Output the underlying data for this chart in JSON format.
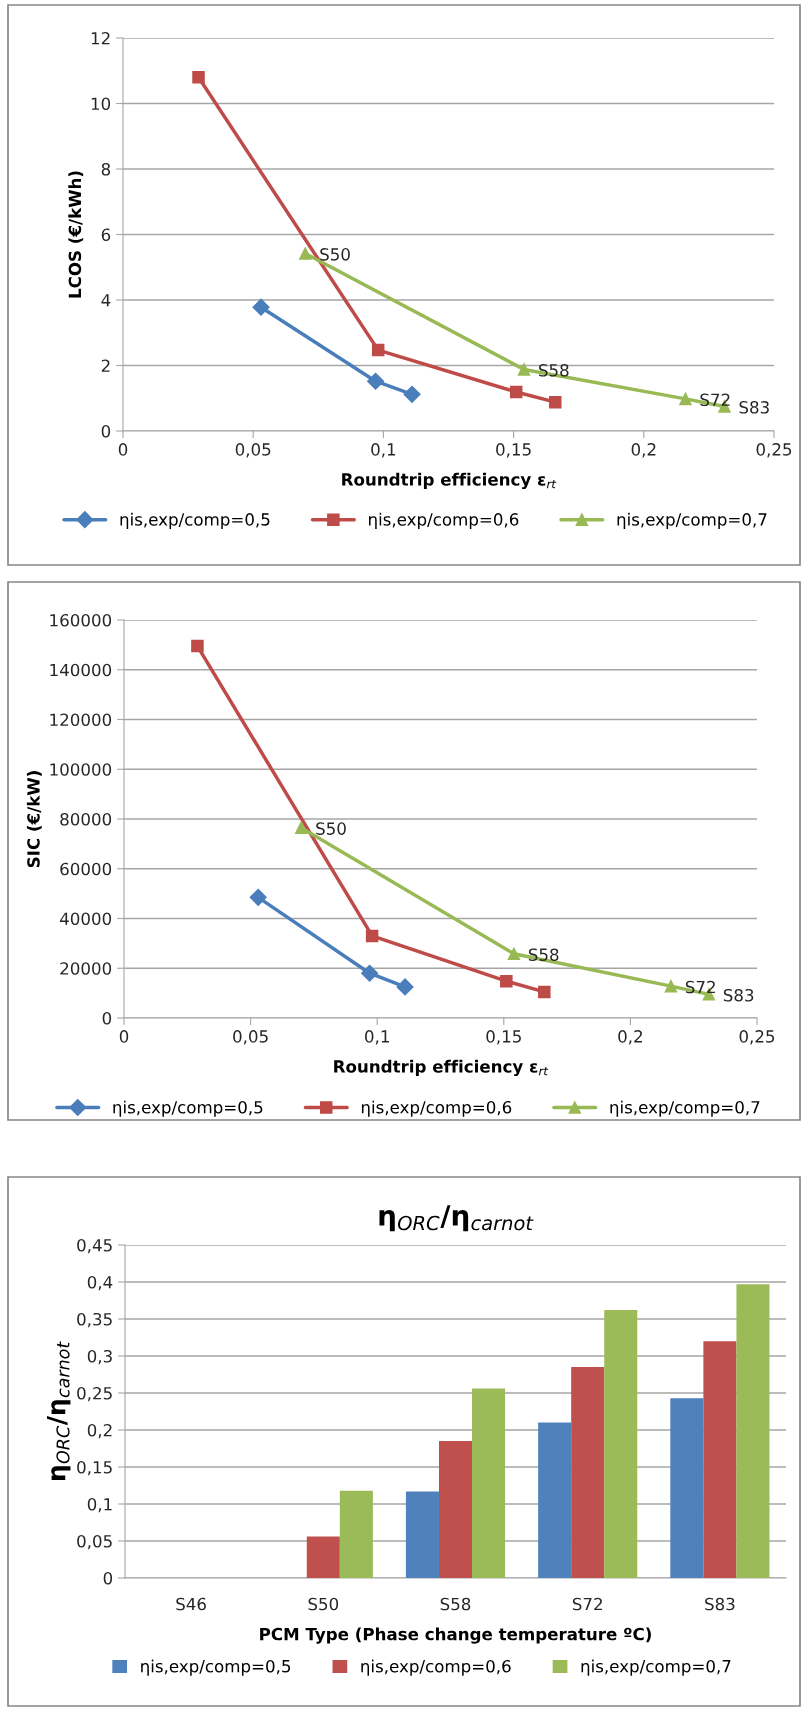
{
  "chart_data": [
    {
      "type": "line",
      "xlabel": "Roundtrip efficiency ε$_{rt}$",
      "ylabel": "LCOS (€/kWh)",
      "xlim": [
        0,
        0.25
      ],
      "xticks": [
        0,
        {
          "value": 0.05,
          "label": "0,05"
        },
        {
          "value": 0.1,
          "label": "0,1"
        },
        {
          "value": 0.15,
          "label": "0,15"
        },
        {
          "value": 0.2,
          "label": "0,2"
        },
        {
          "value": 0.25,
          "label": "0,25"
        }
      ],
      "ylim": [
        0,
        12
      ],
      "yticks": [
        0,
        2,
        4,
        6,
        8,
        10,
        12
      ],
      "grid": "y",
      "legend": "bottom",
      "series": [
        {
          "name": "ηis,exp/comp=0,5",
          "color": "#4a7ebb",
          "marker": "diamond",
          "x": [
            0.053,
            0.097,
            0.111
          ],
          "values": [
            3.78,
            1.52,
            1.12
          ]
        },
        {
          "name": "ηis,exp/comp=0,6",
          "color": "#be4b48",
          "marker": "square",
          "x": [
            0.029,
            0.098,
            0.151,
            0.166
          ],
          "values": [
            10.8,
            2.47,
            1.19,
            0.88
          ]
        },
        {
          "name": "ηis,exp/comp=0,7",
          "color": "#98b954",
          "marker": "triangle",
          "x": [
            0.07,
            0.154,
            0.216,
            0.231
          ],
          "values": [
            5.42,
            1.88,
            0.98,
            0.75
          ]
        }
      ],
      "annotations": [
        {
          "text": "S50",
          "x": 0.07,
          "y": 5.42
        },
        {
          "text": "S58",
          "x": 0.154,
          "y": 1.88
        },
        {
          "text": "S72",
          "x": 0.216,
          "y": 0.98
        },
        {
          "text": "S83",
          "x": 0.231,
          "y": 0.75
        }
      ]
    },
    {
      "type": "line",
      "xlabel": "Roundtrip efficiency ε$_{rt}$",
      "ylabel": "SIC (€/kW)",
      "xlim": [
        0,
        0.25
      ],
      "xticks": [
        0,
        {
          "value": 0.05,
          "label": "0,05"
        },
        {
          "value": 0.1,
          "label": "0,1"
        },
        {
          "value": 0.15,
          "label": "0,15"
        },
        {
          "value": 0.2,
          "label": "0,2"
        },
        {
          "value": 0.25,
          "label": "0,25"
        }
      ],
      "ylim": [
        0,
        160000
      ],
      "yticks": [
        0,
        20000,
        40000,
        60000,
        80000,
        100000,
        120000,
        140000,
        160000
      ],
      "grid": "y",
      "legend": "bottom",
      "series": [
        {
          "name": "ηis,exp/comp=0,5",
          "color": "#4a7ebb",
          "marker": "diamond",
          "x": [
            0.053,
            0.097,
            0.111
          ],
          "values": [
            48500,
            18000,
            12500
          ]
        },
        {
          "name": "ηis,exp/comp=0,6",
          "color": "#be4b48",
          "marker": "square",
          "x": [
            0.029,
            0.098,
            0.151,
            0.166
          ],
          "values": [
            149500,
            33000,
            14800,
            10500
          ]
        },
        {
          "name": "ηis,exp/comp=0,7",
          "color": "#98b954",
          "marker": "triangle",
          "x": [
            0.07,
            0.154,
            0.216,
            0.231
          ],
          "values": [
            76500,
            25800,
            12800,
            9500
          ]
        }
      ],
      "annotations": [
        {
          "text": "S50",
          "x": 0.07,
          "y": 76500
        },
        {
          "text": "S58",
          "x": 0.154,
          "y": 25800
        },
        {
          "text": "S72",
          "x": 0.216,
          "y": 12800
        },
        {
          "text": "S83",
          "x": 0.231,
          "y": 9500
        }
      ]
    },
    {
      "type": "bar",
      "title": "η$_{ORC}$/η$_{carnot}$",
      "xlabel": "PCM Type (Phase change temperature ºC)",
      "ylabel": "η$_{ORC}$/η$_{carnot}$",
      "categories": [
        "S46",
        "S50",
        "S58",
        "S72",
        "S83"
      ],
      "ylim": [
        0,
        0.45
      ],
      "yticks": [
        0,
        {
          "value": 0.05,
          "label": "0,05"
        },
        {
          "value": 0.1,
          "label": "0,1"
        },
        {
          "value": 0.15,
          "label": "0,15"
        },
        {
          "value": 0.2,
          "label": "0,2"
        },
        {
          "value": 0.25,
          "label": "0,25"
        },
        {
          "value": 0.3,
          "label": "0,3"
        },
        {
          "value": 0.35,
          "label": "0,35"
        },
        {
          "value": 0.4,
          "label": "0,4"
        },
        {
          "value": 0.45,
          "label": "0,45"
        }
      ],
      "grid": "y",
      "legend": "bottom",
      "series": [
        {
          "name": "ηis,exp/comp=0,5",
          "color": "#4f81bd",
          "values": [
            null,
            null,
            0.117,
            0.21,
            0.243
          ]
        },
        {
          "name": "ηis,exp/comp=0,6",
          "color": "#c0504d",
          "values": [
            null,
            0.056,
            0.185,
            0.285,
            0.32
          ]
        },
        {
          "name": "ηis,exp/comp=0,7",
          "color": "#9bbb59",
          "values": [
            null,
            0.118,
            0.256,
            0.362,
            0.397
          ]
        }
      ]
    }
  ]
}
